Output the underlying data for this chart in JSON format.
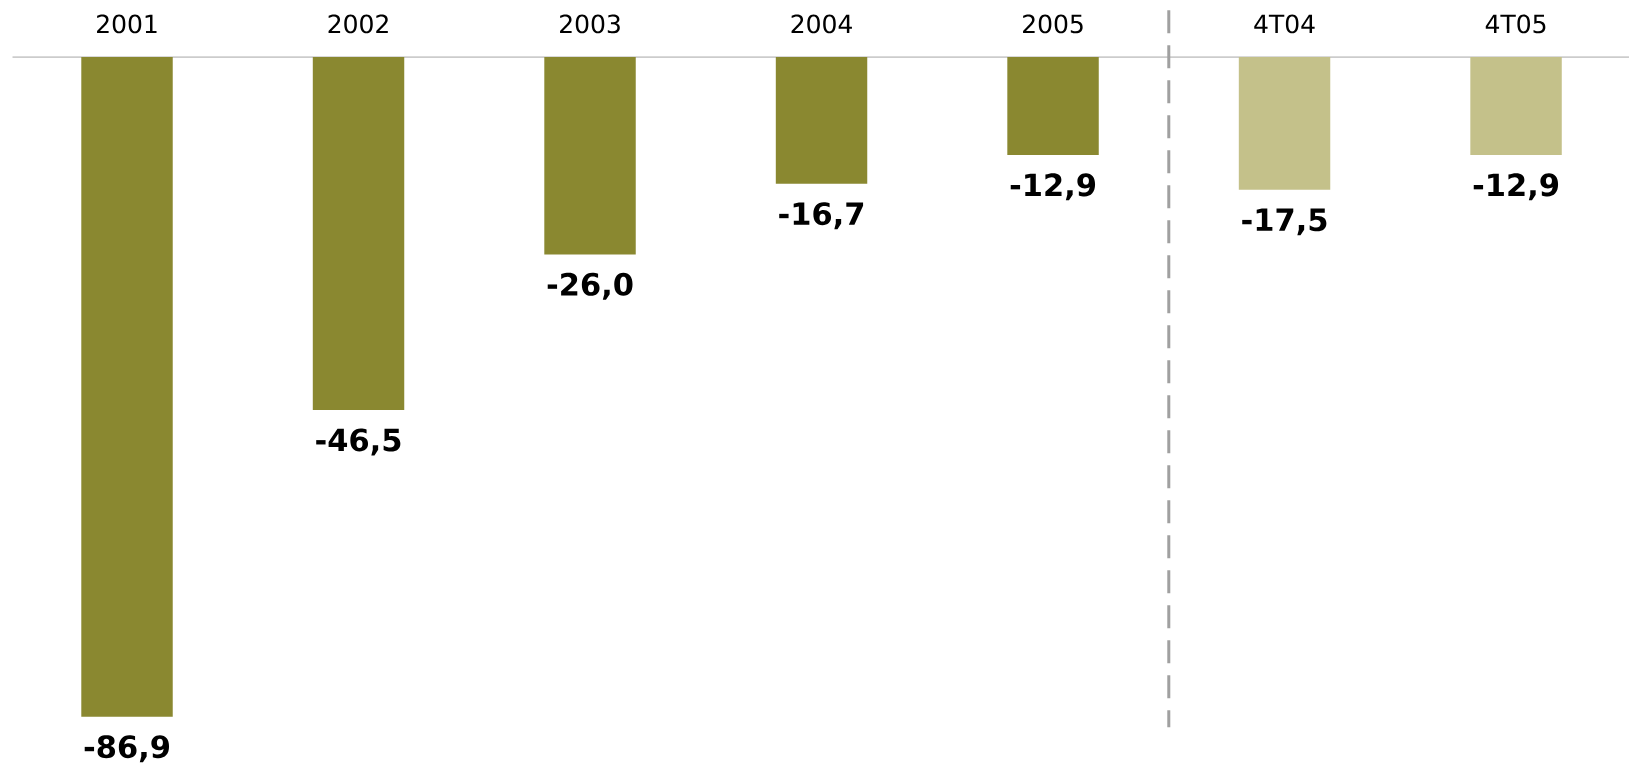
{
  "chart_data": {
    "type": "bar",
    "categories": [
      "2001",
      "2002",
      "2003",
      "2004",
      "2005",
      "4T04",
      "4T05"
    ],
    "values": [
      -86.9,
      -46.5,
      -26.0,
      -16.7,
      -12.9,
      -17.5,
      -12.9
    ],
    "colors": [
      "#8a8830",
      "#8a8830",
      "#8a8830",
      "#8a8830",
      "#8a8830",
      "#c4c18a",
      "#c4c18a"
    ],
    "value_labels": [
      "-86,9",
      "-46,5",
      "-26,0",
      "-16,7",
      "-12,9",
      "-17,5",
      "-12,9"
    ]
  }
}
